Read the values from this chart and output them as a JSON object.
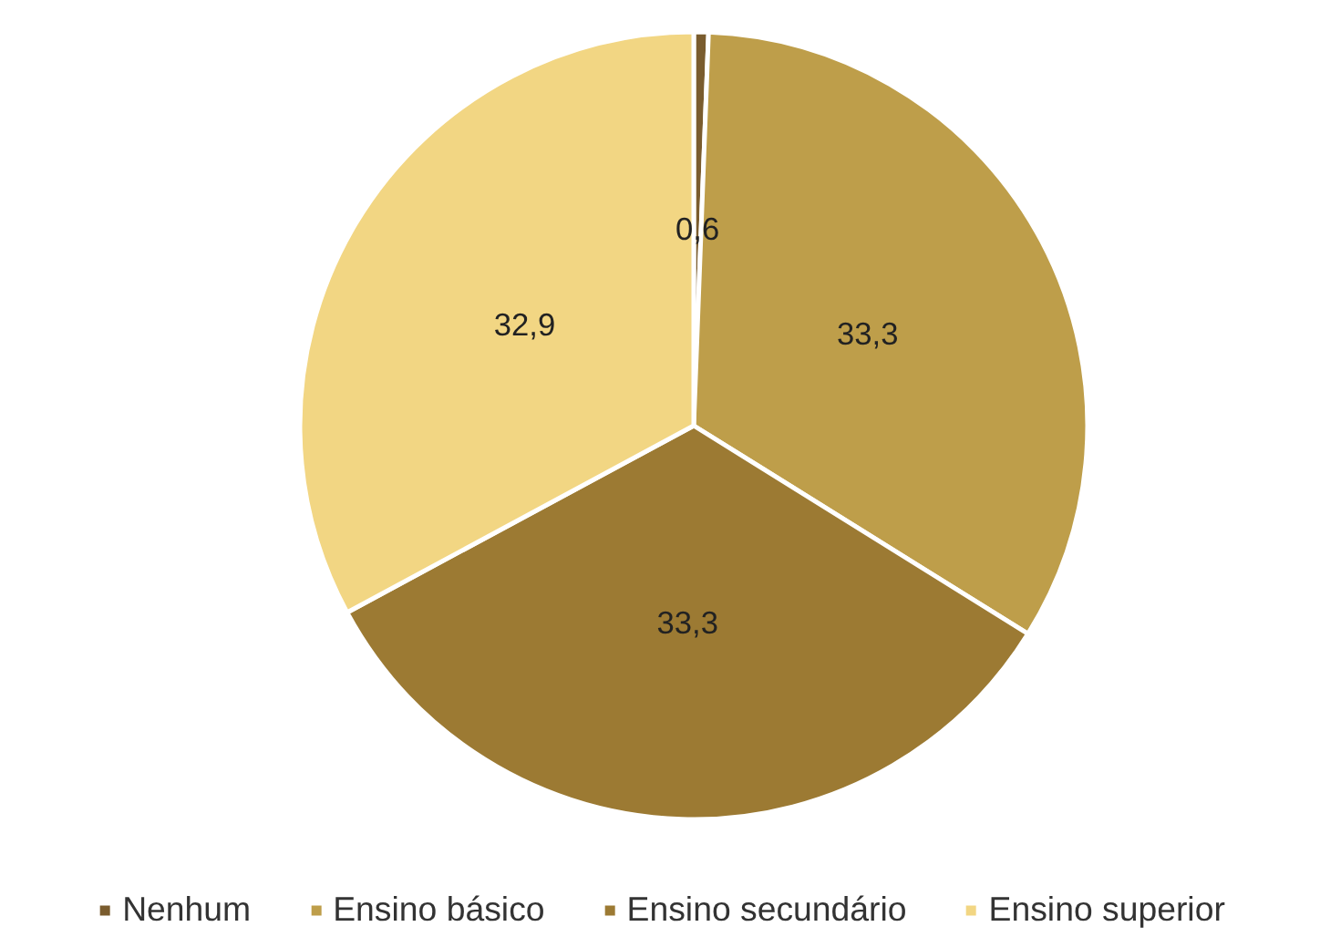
{
  "chart_data": {
    "type": "pie",
    "categories": [
      "Nenhum",
      "Ensino básico",
      "Ensino secundário",
      "Ensino superior"
    ],
    "values": [
      0.6,
      33.3,
      33.3,
      32.9
    ],
    "value_labels": [
      "0,6",
      "33,3",
      "33,3",
      "32,9"
    ],
    "colors": [
      "#7a5c2e",
      "#be9e4a",
      "#9c7a33",
      "#f2d683"
    ],
    "legend": "bottom"
  }
}
